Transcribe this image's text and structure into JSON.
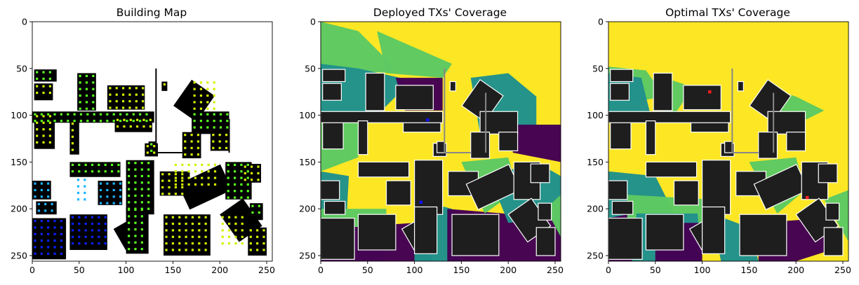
{
  "figure": {
    "panels": [
      {
        "title": "Building Map"
      },
      {
        "title": "Deployed TXs' Coverage"
      },
      {
        "title": "Optimal TXs' Coverage"
      }
    ]
  },
  "chart_data": [
    {
      "type": "heatmap",
      "title": "Building Map",
      "xlim": [
        0,
        256
      ],
      "ylim": [
        256,
        0
      ],
      "xticks": [
        0,
        50,
        100,
        150,
        200,
        250
      ],
      "yticks": [
        0,
        50,
        100,
        150,
        200,
        250
      ],
      "grid": false,
      "description_values": {
        "buildings": "black footprints on white background",
        "markers": "colored square dots on building perimeters (yellow/green upper area, blue/cyan lower-left)"
      },
      "colors": {
        "background": "#ffffff",
        "building": "#000000",
        "marker_yellow": "#d4f000",
        "marker_green": "#5aff20",
        "marker_cyan": "#1ab4ff",
        "marker_blue": "#0a20ff"
      }
    },
    {
      "type": "heatmap",
      "title": "Deployed TXs' Coverage",
      "xlim": [
        0,
        256
      ],
      "ylim": [
        256,
        0
      ],
      "xticks": [
        0,
        50,
        100,
        150,
        200,
        250
      ],
      "yticks": [
        0,
        50,
        100,
        150,
        200,
        250
      ],
      "grid": false,
      "transmitters": [
        {
          "x": 114,
          "y": 105
        },
        {
          "x": 107,
          "y": 193
        }
      ],
      "colors": {
        "yellow": "#fde725",
        "green": "#5ec962",
        "teal": "#21918c",
        "purple": "#440154",
        "building": "#1e1e1e",
        "tx": "#1010ff"
      }
    },
    {
      "type": "heatmap",
      "title": "Optimal TXs' Coverage",
      "xlim": [
        0,
        256
      ],
      "ylim": [
        256,
        0
      ],
      "xticks": [
        0,
        50,
        100,
        150,
        200,
        250
      ],
      "yticks": [
        0,
        50,
        100,
        150,
        200,
        250
      ],
      "grid": false,
      "transmitters": [
        {
          "x": 108,
          "y": 75
        },
        {
          "x": 212,
          "y": 188
        }
      ],
      "colors": {
        "yellow": "#fde725",
        "green": "#5ec962",
        "teal": "#21918c",
        "purple": "#440154",
        "building": "#1e1e1e",
        "tx": "#ff2020"
      }
    }
  ]
}
